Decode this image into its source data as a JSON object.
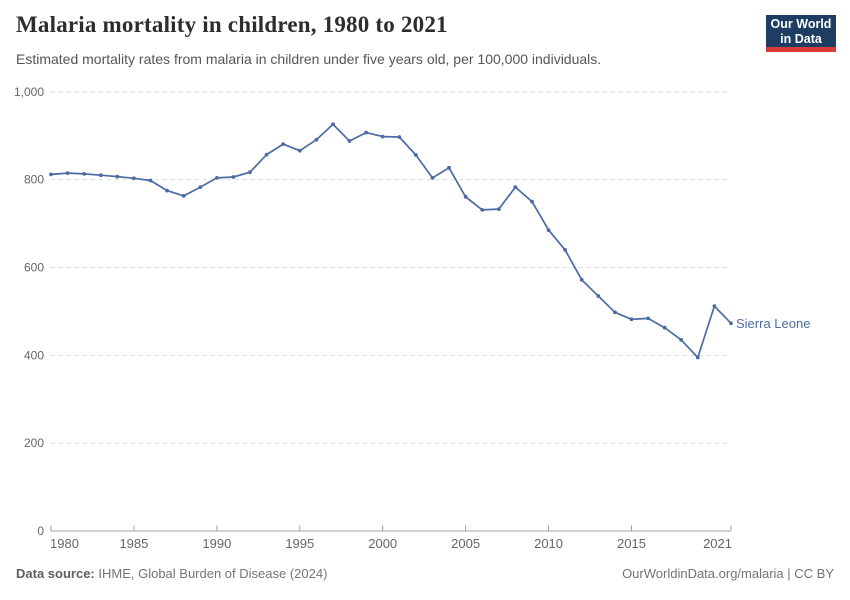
{
  "header": {
    "title": "Malaria mortality in children, 1980 to 2021",
    "subtitle": "Estimated mortality rates from malaria in children under five years old, per 100,000 individuals.",
    "logo": {
      "line1": "Our World",
      "line2": "in Data",
      "bg_color": "#1d3d63",
      "accent_color": "#d73c34"
    }
  },
  "footer": {
    "source_label": "Data source:",
    "source_text": " IHME, Global Burden of Disease (2024)",
    "right_text": "OurWorldinData.org/malaria | CC BY"
  },
  "chart_data": {
    "type": "line",
    "title": "Malaria mortality in children, 1980 to 2021",
    "subtitle": "Estimated mortality rates from malaria in children under five years old, per 100,000 individuals.",
    "xlabel": "",
    "ylabel": "",
    "xlim": [
      1980,
      2021
    ],
    "ylim": [
      0,
      1000
    ],
    "xticks": [
      1980,
      1985,
      1990,
      1995,
      2000,
      2005,
      2010,
      2015,
      2021
    ],
    "yticks": [
      0,
      200,
      400,
      600,
      800,
      1000
    ],
    "grid": "horizontal-dashed",
    "legend_position": "end-of-line-label",
    "entity_label": "Sierra Leone",
    "line_color": "#4c6ba3",
    "grid_color": "#dcdcdc",
    "axis_color": "#a0a0a0",
    "x": [
      1980,
      1981,
      1982,
      1983,
      1984,
      1985,
      1986,
      1987,
      1988,
      1989,
      1990,
      1991,
      1992,
      1993,
      1994,
      1995,
      1996,
      1997,
      1998,
      1999,
      2000,
      2001,
      2002,
      2003,
      2004,
      2005,
      2006,
      2007,
      2008,
      2009,
      2010,
      2011,
      2012,
      2013,
      2014,
      2015,
      2016,
      2017,
      2018,
      2019,
      2020,
      2021
    ],
    "series": [
      {
        "name": "Sierra Leone",
        "values": [
          812,
          815,
          813,
          810,
          807,
          803,
          798,
          775,
          763,
          783,
          804,
          806,
          817,
          857,
          881,
          866,
          891,
          926,
          888,
          907,
          898,
          897,
          856,
          804,
          827,
          761,
          731,
          733,
          783,
          750,
          685,
          640,
          572,
          535,
          498,
          482,
          484,
          463,
          435,
          395,
          512,
          473
        ]
      }
    ]
  }
}
